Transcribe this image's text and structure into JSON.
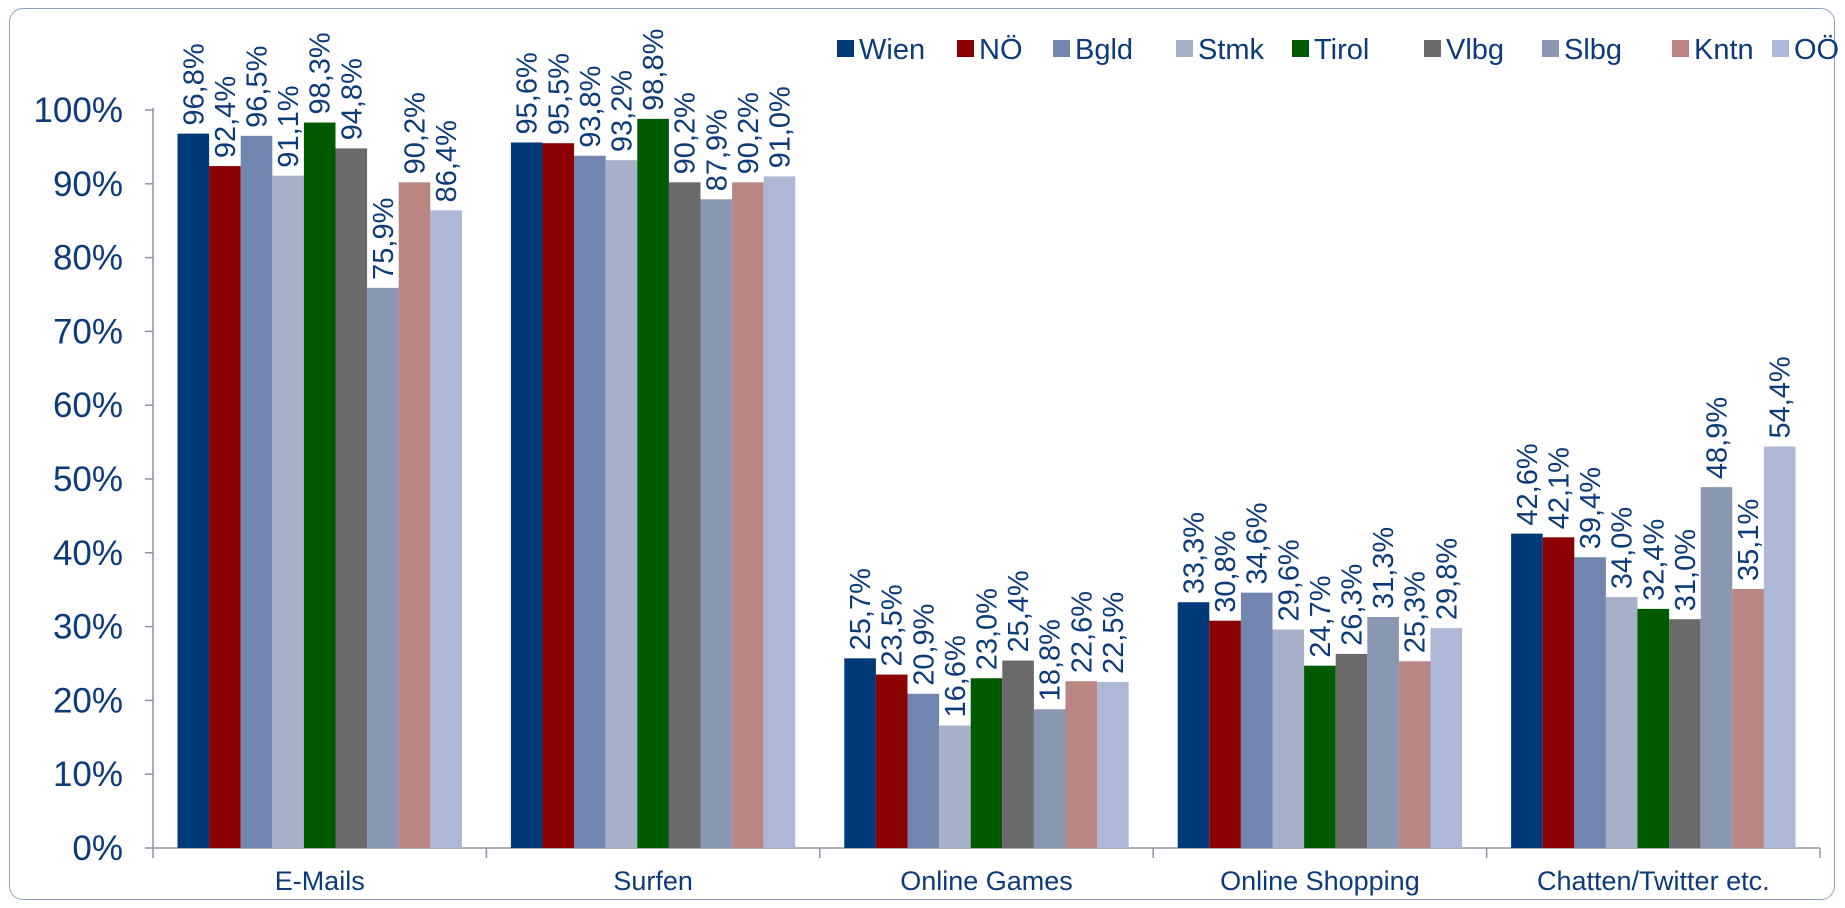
{
  "chart_data": {
    "type": "bar",
    "categories": [
      "E-Mails",
      "Surfen",
      "Online Games",
      "Online Shopping",
      "Chatten/Twitter etc."
    ],
    "series": [
      {
        "name": "Wien",
        "color": "#003a78",
        "values": [
          96.8,
          95.6,
          25.7,
          33.3,
          42.6
        ],
        "labels": [
          "96,8%",
          "95,6%",
          "25,7%",
          "33,3%",
          "42,6%"
        ]
      },
      {
        "name": "NÖ",
        "color": "#8b0000",
        "values": [
          92.4,
          95.5,
          23.5,
          30.8,
          42.1
        ],
        "labels": [
          "92,4%",
          "95,5%",
          "23,5%",
          "30,8%",
          "42,1%"
        ]
      },
      {
        "name": "Bgld",
        "color": "#7285ae",
        "values": [
          96.5,
          93.8,
          20.9,
          34.6,
          39.4
        ],
        "labels": [
          "96,5%",
          "93,8%",
          "20,9%",
          "34,6%",
          "39,4%"
        ]
      },
      {
        "name": "Stmk",
        "color": "#a6b0c8",
        "values": [
          91.1,
          93.2,
          16.6,
          29.6,
          34.0
        ],
        "labels": [
          "91,1%",
          "93,2%",
          "16,6%",
          "29,6%",
          "34,0%"
        ]
      },
      {
        "name": "Tirol",
        "color": "#005a00",
        "values": [
          98.3,
          98.8,
          23.0,
          24.7,
          32.4
        ],
        "labels": [
          "98,3%",
          "98,8%",
          "23,0%",
          "24,7%",
          "32,4%"
        ]
      },
      {
        "name": "Vlbg",
        "color": "#6a6a6a",
        "values": [
          94.8,
          90.2,
          25.4,
          26.3,
          31.0
        ],
        "labels": [
          "94,8%",
          "90,2%",
          "25,4%",
          "26,3%",
          "31,0%"
        ]
      },
      {
        "name": "Slbg",
        "color": "#8a97b2",
        "values": [
          75.9,
          87.9,
          18.8,
          31.3,
          48.9
        ],
        "labels": [
          "75,9%",
          "87,9%",
          "18,8%",
          "31,3%",
          "48,9%"
        ]
      },
      {
        "name": "Kntn",
        "color": "#b98683",
        "values": [
          90.2,
          90.2,
          22.6,
          25.3,
          35.1
        ],
        "labels": [
          "90,2%",
          "90,2%",
          "22,6%",
          "25,3%",
          "35,1%"
        ]
      },
      {
        "name": "OÖ",
        "color": "#adb8d6",
        "values": [
          86.4,
          91.0,
          22.5,
          29.8,
          54.4
        ],
        "labels": [
          "86,4%",
          "91,0%",
          "22,5%",
          "29,8%",
          "54,4%"
        ]
      }
    ],
    "y_ticks": [
      "0%",
      "10%",
      "20%",
      "30%",
      "40%",
      "50%",
      "60%",
      "70%",
      "80%",
      "90%",
      "100%"
    ],
    "ylim": [
      0,
      100
    ],
    "legend_position": "top-right",
    "grid": false,
    "text_color": "#0b3b7a",
    "axis_color": "#8a95aa"
  }
}
